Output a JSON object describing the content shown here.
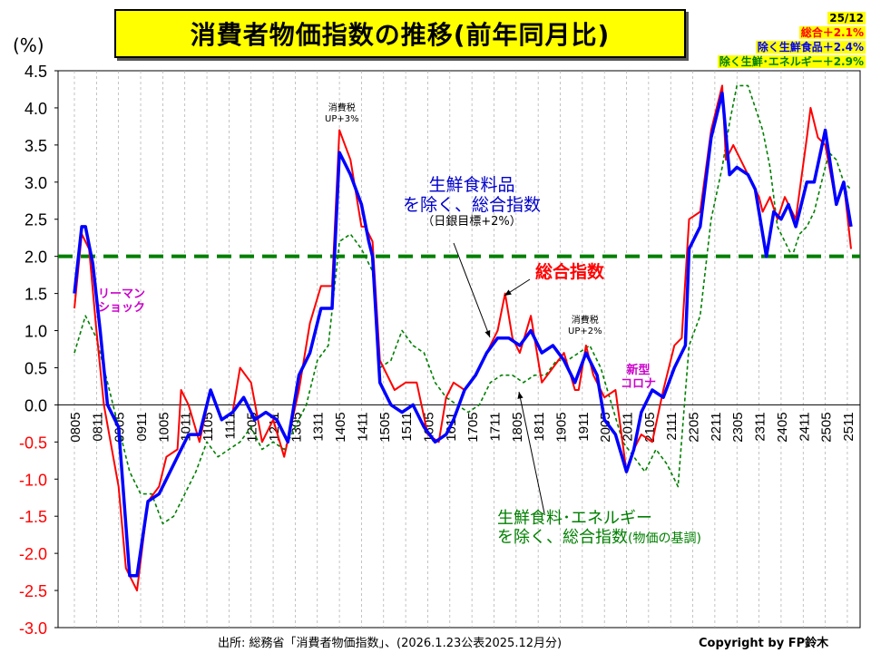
{
  "title": "消費者物価指数の推移(前年同月比)",
  "unit_label": "(%)",
  "legend": {
    "date": "25/12",
    "items": [
      {
        "label": "総合＋2.1%",
        "color": "#ff0000"
      },
      {
        "label": "除く生鮮食品＋2.4%",
        "color": "#0000ff"
      },
      {
        "label": "除く生鮮･エネルギー＋2.9%",
        "color": "#008000"
      }
    ]
  },
  "annotations": {
    "tax1": "消費税\nUP+3%",
    "tax2": "消費税\nUP+2%",
    "lehman": "リーマン\nショック",
    "corona": "新型\nコロナ",
    "core_line1": "生鮮食料品",
    "core_line2": "を除く、総合指数",
    "core_line3": "（日銀目標+2%）",
    "headline": "総合指数",
    "corecore_line1": "生鮮食料･エネルギー",
    "corecore_line2": "を除く、総合指数",
    "corecore_line3": "(物価の基調)"
  },
  "source": "出所: 総務省「消費者物価指数」、(2026.1.23公表2025.12月分)",
  "copyright": "Copyright by FP鈴木",
  "chart_data": {
    "type": "line",
    "x_start": "2008-05",
    "x_end": "2025-12",
    "ylim": [
      -3.0,
      4.5
    ],
    "ytick_step": 0.5,
    "yticks": [
      "4.5",
      "4.0",
      "3.5",
      "3.0",
      "2.5",
      "2.0",
      "1.5",
      "1.0",
      "0.5",
      "0.0",
      "-0.5",
      "-1.0",
      "-1.5",
      "-2.0",
      "-2.5",
      "-3.0"
    ],
    "xticks": [
      "0805",
      "0811",
      "0905",
      "0911",
      "1005",
      "1011",
      "1105",
      "1111",
      "1205",
      "1211",
      "1305",
      "1311",
      "1405",
      "1411",
      "1505",
      "1511",
      "1605",
      "1611",
      "1705",
      "1711",
      "1805",
      "1811",
      "1905",
      "1911",
      "2005",
      "2011",
      "2105",
      "2111",
      "2205",
      "2211",
      "2305",
      "2311",
      "2405",
      "2411",
      "2505",
      "2511"
    ],
    "target_line": {
      "value": 2.0,
      "label": "日銀目標+2%",
      "color": "#008000"
    },
    "series": [
      {
        "name": "総合",
        "color": "#ff0000",
        "anchors": [
          [
            "2008-05",
            1.3
          ],
          [
            "2008-07",
            2.3
          ],
          [
            "2008-09",
            2.1
          ],
          [
            "2008-11",
            1.0
          ],
          [
            "2009-01",
            0.0
          ],
          [
            "2009-05",
            -1.1
          ],
          [
            "2009-07",
            -2.2
          ],
          [
            "2009-10",
            -2.5
          ],
          [
            "2010-01",
            -1.3
          ],
          [
            "2010-04",
            -1.1
          ],
          [
            "2010-06",
            -0.7
          ],
          [
            "2010-09",
            -0.6
          ],
          [
            "2010-10",
            0.2
          ],
          [
            "2010-12",
            0.0
          ],
          [
            "2011-03",
            -0.5
          ],
          [
            "2011-06",
            0.2
          ],
          [
            "2011-09",
            -0.2
          ],
          [
            "2011-12",
            -0.1
          ],
          [
            "2012-02",
            0.5
          ],
          [
            "2012-05",
            0.3
          ],
          [
            "2012-08",
            -0.5
          ],
          [
            "2012-11",
            -0.2
          ],
          [
            "2013-02",
            -0.7
          ],
          [
            "2013-06",
            0.2
          ],
          [
            "2013-09",
            1.1
          ],
          [
            "2013-12",
            1.6
          ],
          [
            "2014-03",
            1.6
          ],
          [
            "2014-05",
            3.7
          ],
          [
            "2014-08",
            3.3
          ],
          [
            "2014-11",
            2.4
          ],
          [
            "2014-12",
            2.4
          ],
          [
            "2015-02",
            2.2
          ],
          [
            "2015-04",
            0.6
          ],
          [
            "2015-08",
            0.2
          ],
          [
            "2015-11",
            0.3
          ],
          [
            "2016-02",
            0.3
          ],
          [
            "2016-05",
            -0.4
          ],
          [
            "2016-08",
            -0.5
          ],
          [
            "2016-10",
            0.1
          ],
          [
            "2016-12",
            0.3
          ],
          [
            "2017-03",
            0.2
          ],
          [
            "2017-06",
            0.4
          ],
          [
            "2017-09",
            0.7
          ],
          [
            "2017-12",
            1.0
          ],
          [
            "2018-02",
            1.5
          ],
          [
            "2018-04",
            0.9
          ],
          [
            "2018-06",
            0.7
          ],
          [
            "2018-09",
            1.2
          ],
          [
            "2018-12",
            0.3
          ],
          [
            "2019-03",
            0.5
          ],
          [
            "2019-06",
            0.7
          ],
          [
            "2019-09",
            0.2
          ],
          [
            "2019-10",
            0.2
          ],
          [
            "2019-12",
            0.8
          ],
          [
            "2020-02",
            0.4
          ],
          [
            "2020-05",
            0.1
          ],
          [
            "2020-08",
            0.2
          ],
          [
            "2020-11",
            -0.9
          ],
          [
            "2021-01",
            -0.6
          ],
          [
            "2021-03",
            -0.4
          ],
          [
            "2021-06",
            -0.5
          ],
          [
            "2021-09",
            0.2
          ],
          [
            "2021-12",
            0.8
          ],
          [
            "2022-02",
            0.9
          ],
          [
            "2022-04",
            2.5
          ],
          [
            "2022-07",
            2.6
          ],
          [
            "2022-10",
            3.7
          ],
          [
            "2023-01",
            4.3
          ],
          [
            "2023-02",
            3.3
          ],
          [
            "2023-04",
            3.5
          ],
          [
            "2023-06",
            3.3
          ],
          [
            "2023-09",
            3.0
          ],
          [
            "2023-11",
            2.8
          ],
          [
            "2023-12",
            2.6
          ],
          [
            "2024-02",
            2.8
          ],
          [
            "2024-04",
            2.5
          ],
          [
            "2024-06",
            2.8
          ],
          [
            "2024-09",
            2.5
          ],
          [
            "2024-12",
            3.6
          ],
          [
            "2025-01",
            4.0
          ],
          [
            "2025-03",
            3.6
          ],
          [
            "2025-05",
            3.5
          ],
          [
            "2025-08",
            2.7
          ],
          [
            "2025-10",
            3.0
          ],
          [
            "2025-12",
            2.1
          ]
        ]
      },
      {
        "name": "除く生鮮食品",
        "color": "#0000ff",
        "anchors": [
          [
            "2008-05",
            1.5
          ],
          [
            "2008-07",
            2.4
          ],
          [
            "2008-08",
            2.4
          ],
          [
            "2008-10",
            1.9
          ],
          [
            "2008-12",
            1.0
          ],
          [
            "2009-02",
            0.0
          ],
          [
            "2009-05",
            -0.3
          ],
          [
            "2009-08",
            -2.3
          ],
          [
            "2009-10",
            -2.3
          ],
          [
            "2010-01",
            -1.3
          ],
          [
            "2010-04",
            -1.2
          ],
          [
            "2010-06",
            -1.0
          ],
          [
            "2010-10",
            -0.6
          ],
          [
            "2010-12",
            -0.4
          ],
          [
            "2011-03",
            -0.4
          ],
          [
            "2011-06",
            0.2
          ],
          [
            "2011-09",
            -0.2
          ],
          [
            "2011-12",
            -0.1
          ],
          [
            "2012-03",
            0.1
          ],
          [
            "2012-06",
            -0.2
          ],
          [
            "2012-09",
            -0.1
          ],
          [
            "2012-12",
            -0.2
          ],
          [
            "2013-03",
            -0.5
          ],
          [
            "2013-06",
            0.4
          ],
          [
            "2013-09",
            0.7
          ],
          [
            "2013-12",
            1.3
          ],
          [
            "2014-03",
            1.3
          ],
          [
            "2014-05",
            3.4
          ],
          [
            "2014-08",
            3.1
          ],
          [
            "2014-11",
            2.7
          ],
          [
            "2015-01",
            2.2
          ],
          [
            "2015-02",
            2.0
          ],
          [
            "2015-04",
            0.3
          ],
          [
            "2015-07",
            0.0
          ],
          [
            "2015-10",
            -0.1
          ],
          [
            "2016-01",
            0.0
          ],
          [
            "2016-04",
            -0.3
          ],
          [
            "2016-07",
            -0.5
          ],
          [
            "2016-10",
            -0.4
          ],
          [
            "2016-12",
            -0.2
          ],
          [
            "2017-03",
            0.2
          ],
          [
            "2017-06",
            0.4
          ],
          [
            "2017-09",
            0.7
          ],
          [
            "2017-12",
            0.9
          ],
          [
            "2018-03",
            0.9
          ],
          [
            "2018-06",
            0.8
          ],
          [
            "2018-09",
            1.0
          ],
          [
            "2018-12",
            0.7
          ],
          [
            "2019-03",
            0.8
          ],
          [
            "2019-06",
            0.6
          ],
          [
            "2019-09",
            0.3
          ],
          [
            "2019-12",
            0.7
          ],
          [
            "2020-03",
            0.4
          ],
          [
            "2020-05",
            -0.2
          ],
          [
            "2020-08",
            -0.4
          ],
          [
            "2020-11",
            -0.9
          ],
          [
            "2021-01",
            -0.6
          ],
          [
            "2021-03",
            -0.1
          ],
          [
            "2021-06",
            0.2
          ],
          [
            "2021-09",
            0.1
          ],
          [
            "2021-12",
            0.5
          ],
          [
            "2022-03",
            0.8
          ],
          [
            "2022-04",
            2.1
          ],
          [
            "2022-07",
            2.4
          ],
          [
            "2022-10",
            3.6
          ],
          [
            "2023-01",
            4.2
          ],
          [
            "2023-03",
            3.1
          ],
          [
            "2023-05",
            3.2
          ],
          [
            "2023-08",
            3.1
          ],
          [
            "2023-10",
            2.9
          ],
          [
            "2023-12",
            2.3
          ],
          [
            "2024-01",
            2.0
          ],
          [
            "2024-03",
            2.6
          ],
          [
            "2024-05",
            2.5
          ],
          [
            "2024-07",
            2.7
          ],
          [
            "2024-09",
            2.4
          ],
          [
            "2024-12",
            3.0
          ],
          [
            "2025-02",
            3.0
          ],
          [
            "2025-05",
            3.7
          ],
          [
            "2025-08",
            2.7
          ],
          [
            "2025-10",
            3.0
          ],
          [
            "2025-12",
            2.4
          ]
        ]
      },
      {
        "name": "除く生鮮･エネルギー",
        "color": "#008000",
        "anchors": [
          [
            "2008-05",
            0.7
          ],
          [
            "2008-08",
            1.2
          ],
          [
            "2008-11",
            0.9
          ],
          [
            "2009-02",
            0.3
          ],
          [
            "2009-05",
            -0.3
          ],
          [
            "2009-08",
            -0.9
          ],
          [
            "2009-11",
            -1.2
          ],
          [
            "2010-02",
            -1.2
          ],
          [
            "2010-05",
            -1.6
          ],
          [
            "2010-08",
            -1.5
          ],
          [
            "2010-11",
            -1.2
          ],
          [
            "2011-02",
            -0.9
          ],
          [
            "2011-05",
            -0.5
          ],
          [
            "2011-08",
            -0.7
          ],
          [
            "2011-11",
            -0.6
          ],
          [
            "2012-02",
            -0.5
          ],
          [
            "2012-05",
            -0.3
          ],
          [
            "2012-08",
            -0.6
          ],
          [
            "2012-11",
            -0.5
          ],
          [
            "2013-02",
            -0.6
          ],
          [
            "2013-05",
            -0.3
          ],
          [
            "2013-08",
            0.0
          ],
          [
            "2013-11",
            0.6
          ],
          [
            "2014-02",
            0.8
          ],
          [
            "2014-05",
            2.2
          ],
          [
            "2014-08",
            2.3
          ],
          [
            "2014-11",
            2.1
          ],
          [
            "2015-02",
            1.8
          ],
          [
            "2015-04",
            0.5
          ],
          [
            "2015-07",
            0.6
          ],
          [
            "2015-10",
            1.0
          ],
          [
            "2016-01",
            0.8
          ],
          [
            "2016-04",
            0.7
          ],
          [
            "2016-07",
            0.3
          ],
          [
            "2016-10",
            0.1
          ],
          [
            "2017-01",
            0.0
          ],
          [
            "2017-04",
            -0.1
          ],
          [
            "2017-07",
            0.0
          ],
          [
            "2017-10",
            0.3
          ],
          [
            "2018-01",
            0.4
          ],
          [
            "2018-04",
            0.4
          ],
          [
            "2018-07",
            0.3
          ],
          [
            "2018-10",
            0.4
          ],
          [
            "2019-01",
            0.4
          ],
          [
            "2019-04",
            0.6
          ],
          [
            "2019-07",
            0.6
          ],
          [
            "2019-10",
            0.7
          ],
          [
            "2020-01",
            0.8
          ],
          [
            "2020-04",
            0.5
          ],
          [
            "2020-07",
            0.0
          ],
          [
            "2020-10",
            -0.5
          ],
          [
            "2021-01",
            -0.7
          ],
          [
            "2021-04",
            -0.9
          ],
          [
            "2021-07",
            -0.6
          ],
          [
            "2021-10",
            -0.8
          ],
          [
            "2022-01",
            -1.1
          ],
          [
            "2022-04",
            0.8
          ],
          [
            "2022-07",
            1.2
          ],
          [
            "2022-10",
            2.5
          ],
          [
            "2023-01",
            3.2
          ],
          [
            "2023-03",
            3.8
          ],
          [
            "2023-05",
            4.3
          ],
          [
            "2023-08",
            4.3
          ],
          [
            "2023-10",
            4.0
          ],
          [
            "2023-12",
            3.7
          ],
          [
            "2024-02",
            3.2
          ],
          [
            "2024-04",
            2.4
          ],
          [
            "2024-06",
            2.2
          ],
          [
            "2024-08",
            2.0
          ],
          [
            "2024-10",
            2.3
          ],
          [
            "2024-12",
            2.4
          ],
          [
            "2025-02",
            2.6
          ],
          [
            "2025-04",
            3.0
          ],
          [
            "2025-06",
            3.4
          ],
          [
            "2025-08",
            3.3
          ],
          [
            "2025-10",
            3.0
          ],
          [
            "2025-12",
            2.9
          ]
        ]
      }
    ]
  }
}
